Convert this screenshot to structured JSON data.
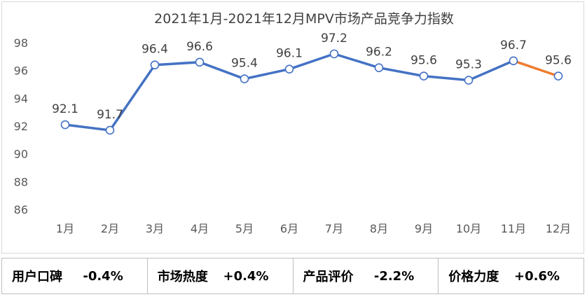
{
  "chart_data": {
    "type": "line",
    "title": "2021年1月-2021年12月MPV市场产品竞争力指数",
    "categories": [
      "1月",
      "2月",
      "3月",
      "4月",
      "5月",
      "6月",
      "7月",
      "8月",
      "9月",
      "10月",
      "11月",
      "12月"
    ],
    "values": [
      92.1,
      91.7,
      96.4,
      96.6,
      95.4,
      96.1,
      97.2,
      96.2,
      95.6,
      95.3,
      96.7,
      95.6
    ],
    "data_labels": [
      "92.1",
      "91.7",
      "96.4",
      "96.6",
      "95.4",
      "96.1",
      "97.2",
      "96.2",
      "95.6",
      "95.3",
      "96.7",
      "95.6"
    ],
    "ylim": [
      86,
      98
    ],
    "yticks": [
      "86",
      "88",
      "90",
      "92",
      "94",
      "96",
      "98"
    ],
    "grid": false,
    "line_color": "#4472C4",
    "last_segment_color": "#ED7D31"
  },
  "metrics": [
    {
      "label": "用户口碑",
      "value": "-0.4%"
    },
    {
      "label": "市场热度",
      "value": "+0.4%"
    },
    {
      "label": "产品评价",
      "value": "-2.2%"
    },
    {
      "label": "价格力度",
      "value": "+0.6%"
    }
  ]
}
